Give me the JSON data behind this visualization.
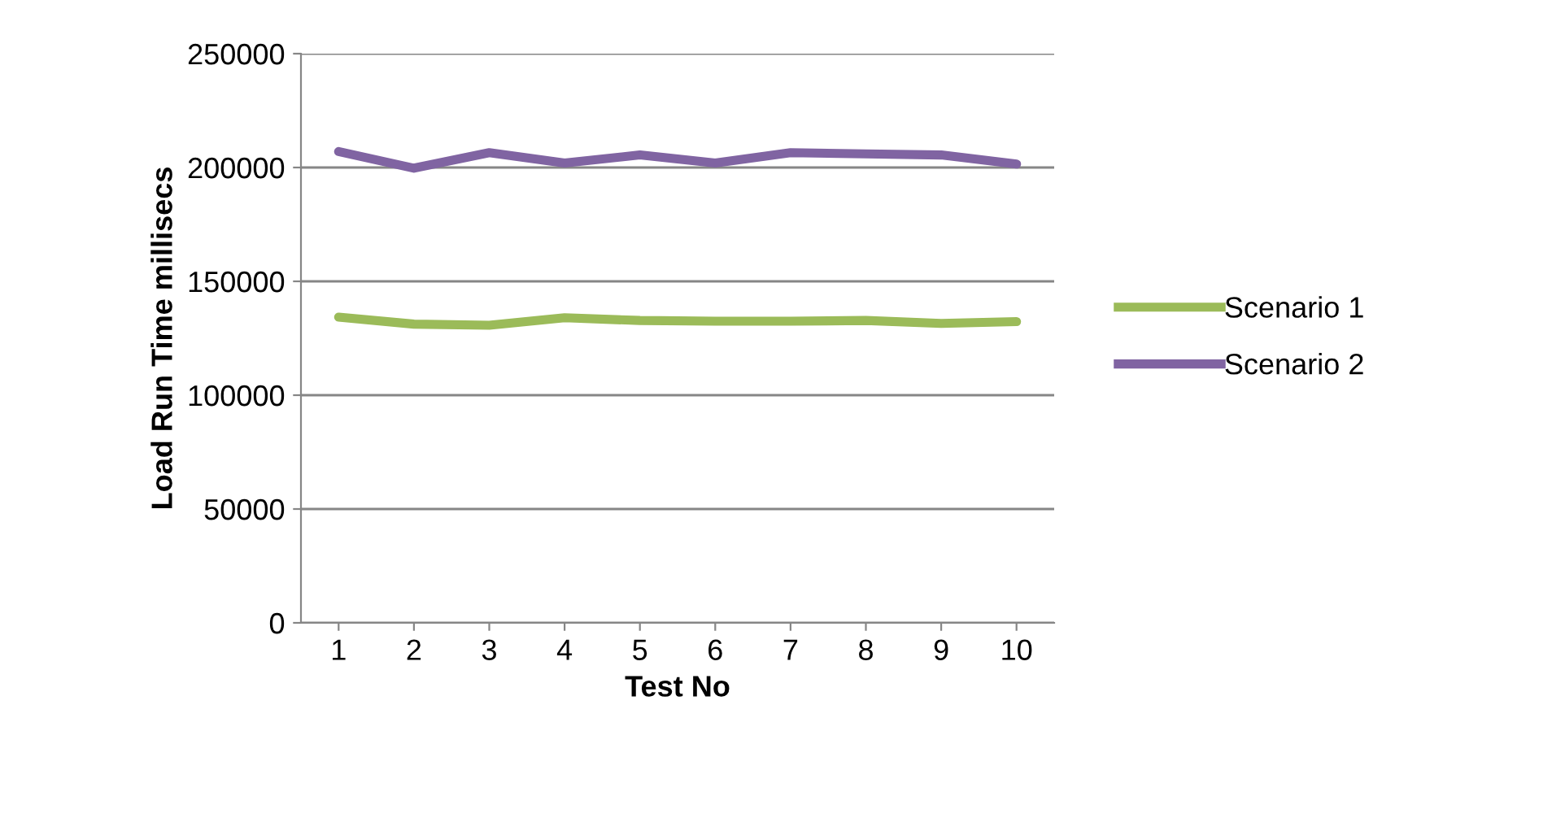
{
  "chart_data": {
    "type": "line",
    "xlabel": "Test No",
    "ylabel": "Load Run Time millisecs",
    "categories": [
      "1",
      "2",
      "3",
      "4",
      "5",
      "6",
      "7",
      "8",
      "9",
      "10"
    ],
    "series": [
      {
        "name": "Scenario 1",
        "color": "#9bbb59",
        "values": [
          134300,
          131200,
          130700,
          134000,
          132800,
          132500,
          132500,
          132800,
          131500,
          132300
        ]
      },
      {
        "name": "Scenario 2",
        "color": "#8064a2",
        "values": [
          207000,
          199700,
          206500,
          202000,
          205500,
          202000,
          206500,
          206000,
          205500,
          201500
        ]
      }
    ],
    "ylim": [
      0,
      250000
    ],
    "yticks": [
      0,
      50000,
      100000,
      150000,
      200000,
      250000
    ],
    "grid": "y",
    "legend": "right",
    "marker": "none",
    "line_style": "solid"
  }
}
